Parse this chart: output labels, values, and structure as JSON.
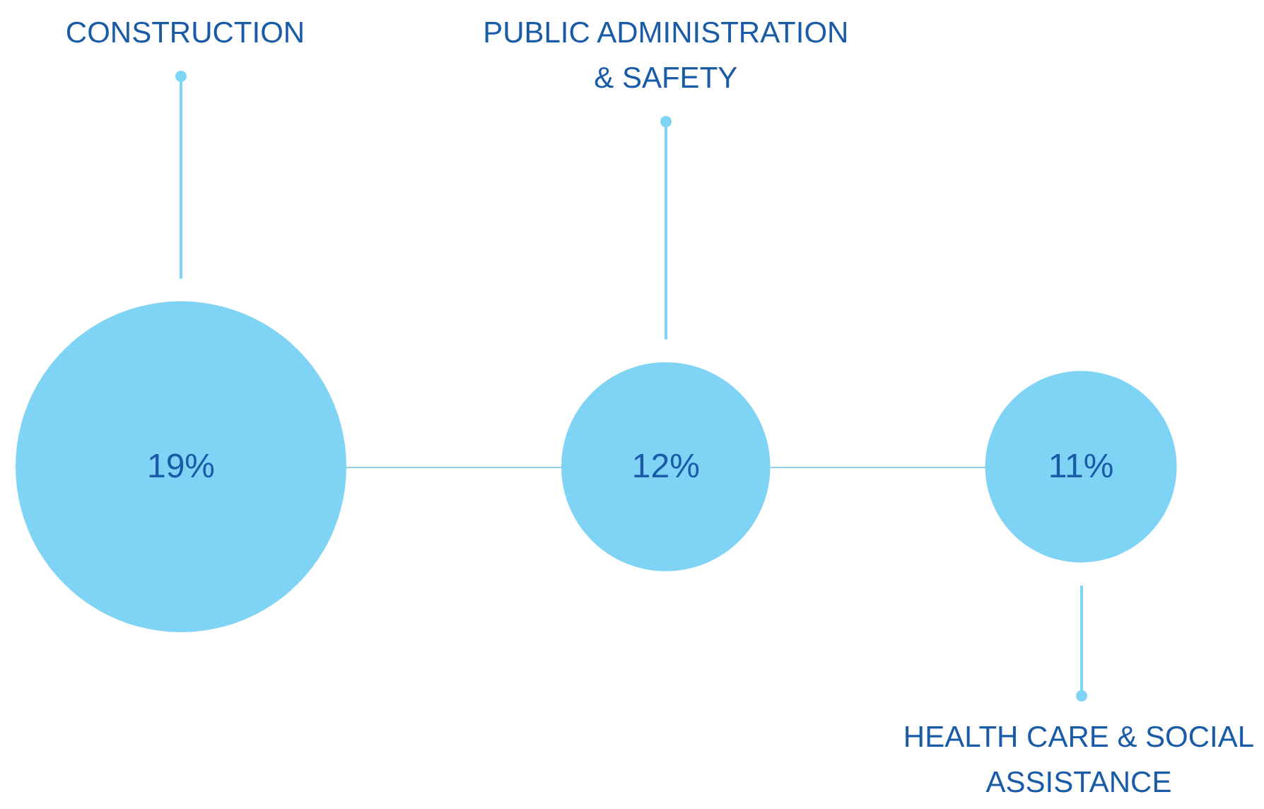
{
  "chart_data": {
    "type": "other",
    "categories": [
      "CONSTRUCTION",
      "PUBLIC ADMINISTRATION & SAFETY",
      "HEALTH CARE & SOCIAL ASSISTANCE"
    ],
    "values": [
      19,
      12,
      11
    ],
    "value_labels": [
      "19%",
      "12%",
      "11%"
    ],
    "color": "#7fd4f6"
  }
}
